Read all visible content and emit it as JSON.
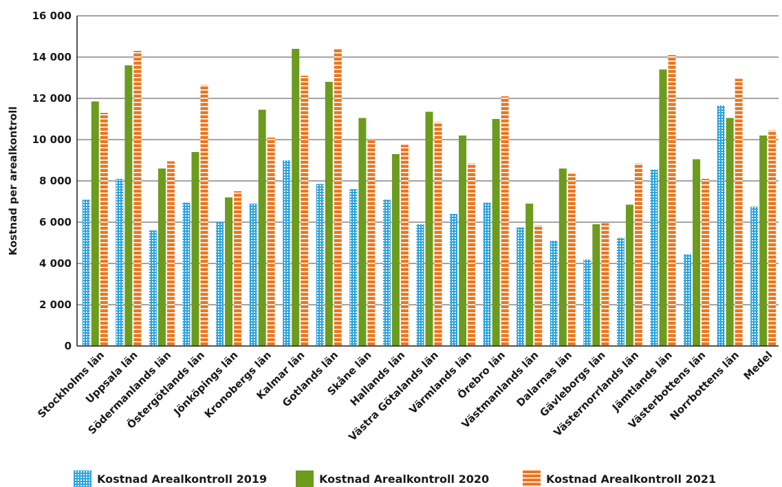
{
  "chart_data": {
    "type": "bar",
    "title": "",
    "xlabel": "",
    "ylabel": "Kostnad per arealkontroll",
    "ylim": [
      0,
      16000
    ],
    "yticks": [
      0,
      2000,
      4000,
      6000,
      8000,
      10000,
      12000,
      14000,
      16000
    ],
    "ytick_labels": [
      "0",
      "2 000",
      "4 000",
      "6 000",
      "8 000",
      "10 000",
      "12 000",
      "14 000",
      "16 000"
    ],
    "grid": true,
    "legend_position": "bottom",
    "categories": [
      "Stockholms län",
      "Uppsala län",
      "Södermanlands län",
      "Östergötlands län",
      "Jönköpings län",
      "Kronobergs län",
      "Kalmar län",
      "Gotlands län",
      "Skåne län",
      "Hallands län",
      "Västra Götalands län",
      "Värmlands län",
      "Örebro län",
      "Västmanlands län",
      "Dalarnas län",
      "Gävleborgs län",
      "Västernorrlands län",
      "Jämtlands län",
      "Västerbottens län",
      "Norrbottens län",
      "Medel"
    ],
    "series": [
      {
        "name": "Kostnad Arealkontroll 2019",
        "color": "#29a3dc",
        "pattern": "dots",
        "values": [
          7100,
          8100,
          5600,
          6950,
          6000,
          6900,
          9000,
          7850,
          7600,
          7100,
          5900,
          6400,
          6950,
          5750,
          5100,
          4200,
          5250,
          8550,
          4450,
          11650,
          6750
        ]
      },
      {
        "name": "Kostnad Arealkontroll 2020",
        "color": "#6d9b1e",
        "pattern": "solid",
        "values": [
          11850,
          13600,
          8600,
          9400,
          7200,
          11450,
          14400,
          12800,
          11050,
          9300,
          11350,
          10200,
          11000,
          6900,
          8600,
          5900,
          6850,
          13400,
          9050,
          11050,
          10200
        ]
      },
      {
        "name": "Kostnad Arealkontroll 2021",
        "color": "#e87722",
        "pattern": "stripes",
        "values": [
          11300,
          14300,
          8950,
          12650,
          7500,
          10100,
          13100,
          14400,
          10000,
          9750,
          10850,
          8850,
          12100,
          5850,
          8350,
          5950,
          8850,
          14100,
          8100,
          12950,
          10450
        ]
      }
    ]
  }
}
